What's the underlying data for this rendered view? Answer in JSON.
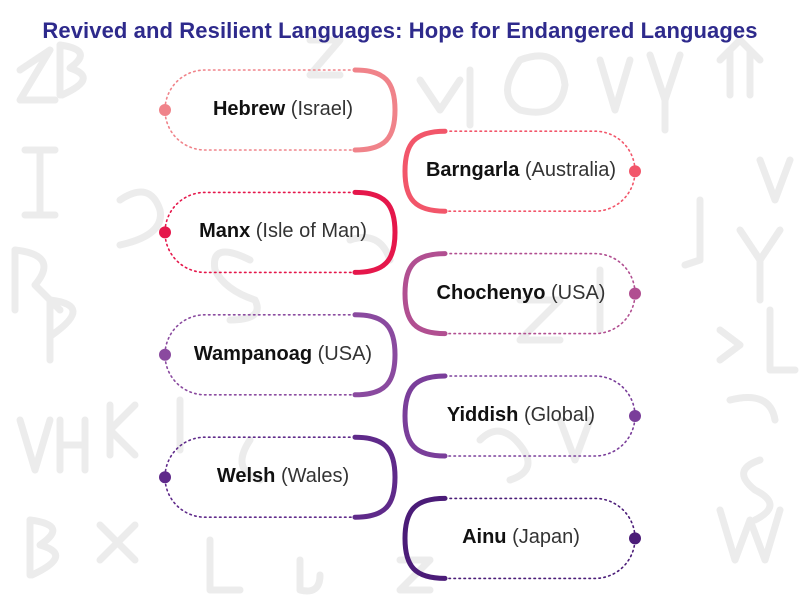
{
  "title": "Revived and Resilient Languages: Hope for Endangered Languages",
  "colors": {
    "title": "#2e2a8c",
    "connector": "#bdbdbd",
    "background_letters": "#e6e6e6"
  },
  "languages": [
    {
      "name": "Hebrew",
      "region": "(Israel)",
      "side": "left",
      "color": "#f0838a"
    },
    {
      "name": "Barngarla",
      "region": "(Australia)",
      "side": "right",
      "color": "#f2566a"
    },
    {
      "name": "Manx",
      "region": "(Isle of Man)",
      "side": "left",
      "color": "#e5174b"
    },
    {
      "name": "Chochenyo",
      "region": "(USA)",
      "side": "right",
      "color": "#b14f91"
    },
    {
      "name": "Wampanoag",
      "region": "(USA)",
      "side": "left",
      "color": "#8a4a9f"
    },
    {
      "name": "Yiddish",
      "region": "(Global)",
      "side": "right",
      "color": "#7a3e9a"
    },
    {
      "name": "Welsh",
      "region": "(Wales)",
      "side": "left",
      "color": "#5f2a8a"
    },
    {
      "name": "Ainu",
      "region": "(Japan)",
      "side": "right",
      "color": "#4b1c78"
    }
  ]
}
